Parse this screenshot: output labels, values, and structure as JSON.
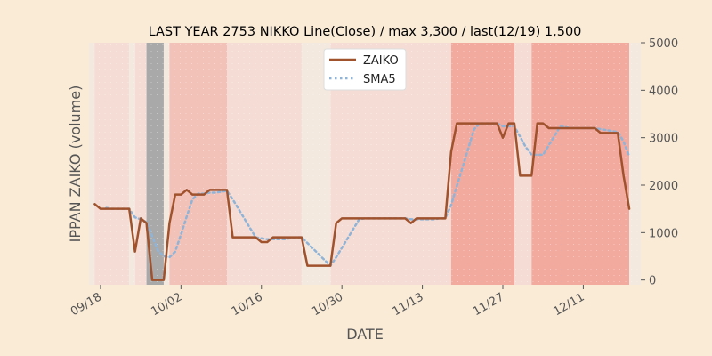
{
  "chart_data": {
    "type": "line",
    "title": "LAST YEAR 2753 NIKKO Line(Close) / max 3,300 / last(12/19) 1,500",
    "xlabel": "DATE",
    "ylabel": "IPPAN ZAIKO (volume)",
    "ylim": [
      -100,
      5000
    ],
    "xlim": [
      "2023-09-16",
      "2023-12-21"
    ],
    "yticks": [
      0,
      1000,
      2000,
      3000,
      4000,
      5000
    ],
    "y_axis_side": "right",
    "xticks": [
      {
        "date": "2023-09-18",
        "label": "09/18"
      },
      {
        "date": "2023-10-02",
        "label": "10/02"
      },
      {
        "date": "2023-10-16",
        "label": "10/16"
      },
      {
        "date": "2023-10-30",
        "label": "10/30"
      },
      {
        "date": "2023-11-13",
        "label": "11/13"
      },
      {
        "date": "2023-11-27",
        "label": "11/27"
      },
      {
        "date": "2023-12-11",
        "label": "12/11"
      }
    ],
    "legend_position": "top-center",
    "colors": {
      "background": "#FAEBD7",
      "plot_background": "#FFFFFF",
      "zaiko": "#A0522D",
      "sma5": "#8FB4D8",
      "band_light": "#F5DDD5",
      "band_medium": "#F2C2B8",
      "band_strong": "#F2A99E",
      "band_gray": "#A9A9A9",
      "band_cream": "#F3E9DF"
    },
    "bands": [
      {
        "start": "2023-09-16",
        "end": "2023-09-17",
        "level": "cream"
      },
      {
        "start": "2023-09-17",
        "end": "2023-09-23",
        "level": "light"
      },
      {
        "start": "2023-09-23",
        "end": "2023-09-24",
        "level": "cream"
      },
      {
        "start": "2023-09-24",
        "end": "2023-09-26",
        "level": "light"
      },
      {
        "start": "2023-09-26",
        "end": "2023-09-29",
        "level": "gray"
      },
      {
        "start": "2023-09-29",
        "end": "2023-09-30",
        "level": "cream"
      },
      {
        "start": "2023-09-30",
        "end": "2023-10-10",
        "level": "medium"
      },
      {
        "start": "2023-10-10",
        "end": "2023-10-23",
        "level": "light"
      },
      {
        "start": "2023-10-23",
        "end": "2023-10-28",
        "level": "cream"
      },
      {
        "start": "2023-10-28",
        "end": "2023-11-18",
        "level": "light"
      },
      {
        "start": "2023-11-18",
        "end": "2023-11-29",
        "level": "strong"
      },
      {
        "start": "2023-11-29",
        "end": "2023-12-02",
        "level": "light"
      },
      {
        "start": "2023-12-02",
        "end": "2023-12-19",
        "level": "strong"
      },
      {
        "start": "2023-12-19",
        "end": "2023-12-21",
        "level": "cream"
      }
    ],
    "series": [
      {
        "name": "ZAIKO",
        "style": "solid",
        "points": [
          [
            "2023-09-17",
            1600
          ],
          [
            "2023-09-18",
            1500
          ],
          [
            "2023-09-19",
            1500
          ],
          [
            "2023-09-20",
            1500
          ],
          [
            "2023-09-21",
            1500
          ],
          [
            "2023-09-22",
            1500
          ],
          [
            "2023-09-23",
            1500
          ],
          [
            "2023-09-24",
            600
          ],
          [
            "2023-09-25",
            1300
          ],
          [
            "2023-09-26",
            1200
          ],
          [
            "2023-09-27",
            0
          ],
          [
            "2023-09-28",
            0
          ],
          [
            "2023-09-29",
            0
          ],
          [
            "2023-09-30",
            1200
          ],
          [
            "2023-10-01",
            1800
          ],
          [
            "2023-10-02",
            1800
          ],
          [
            "2023-10-03",
            1900
          ],
          [
            "2023-10-04",
            1800
          ],
          [
            "2023-10-05",
            1800
          ],
          [
            "2023-10-06",
            1800
          ],
          [
            "2023-10-07",
            1900
          ],
          [
            "2023-10-08",
            1900
          ],
          [
            "2023-10-09",
            1900
          ],
          [
            "2023-10-10",
            1900
          ],
          [
            "2023-10-11",
            900
          ],
          [
            "2023-10-12",
            900
          ],
          [
            "2023-10-13",
            900
          ],
          [
            "2023-10-14",
            900
          ],
          [
            "2023-10-15",
            900
          ],
          [
            "2023-10-16",
            800
          ],
          [
            "2023-10-17",
            800
          ],
          [
            "2023-10-18",
            900
          ],
          [
            "2023-10-19",
            900
          ],
          [
            "2023-10-20",
            900
          ],
          [
            "2023-10-21",
            900
          ],
          [
            "2023-10-22",
            900
          ],
          [
            "2023-10-23",
            900
          ],
          [
            "2023-10-24",
            300
          ],
          [
            "2023-10-25",
            300
          ],
          [
            "2023-10-26",
            300
          ],
          [
            "2023-10-27",
            300
          ],
          [
            "2023-10-28",
            300
          ],
          [
            "2023-10-29",
            1200
          ],
          [
            "2023-10-30",
            1300
          ],
          [
            "2023-10-31",
            1300
          ],
          [
            "2023-11-01",
            1300
          ],
          [
            "2023-11-02",
            1300
          ],
          [
            "2023-11-03",
            1300
          ],
          [
            "2023-11-04",
            1300
          ],
          [
            "2023-11-05",
            1300
          ],
          [
            "2023-11-06",
            1300
          ],
          [
            "2023-11-07",
            1300
          ],
          [
            "2023-11-08",
            1300
          ],
          [
            "2023-11-09",
            1300
          ],
          [
            "2023-11-10",
            1300
          ],
          [
            "2023-11-11",
            1200
          ],
          [
            "2023-11-12",
            1300
          ],
          [
            "2023-11-13",
            1300
          ],
          [
            "2023-11-14",
            1300
          ],
          [
            "2023-11-15",
            1300
          ],
          [
            "2023-11-16",
            1300
          ],
          [
            "2023-11-17",
            1300
          ],
          [
            "2023-11-18",
            2700
          ],
          [
            "2023-11-19",
            3300
          ],
          [
            "2023-11-20",
            3300
          ],
          [
            "2023-11-21",
            3300
          ],
          [
            "2023-11-22",
            3300
          ],
          [
            "2023-11-23",
            3300
          ],
          [
            "2023-11-24",
            3300
          ],
          [
            "2023-11-25",
            3300
          ],
          [
            "2023-11-26",
            3300
          ],
          [
            "2023-11-27",
            3000
          ],
          [
            "2023-11-28",
            3300
          ],
          [
            "2023-11-29",
            3300
          ],
          [
            "2023-11-30",
            2200
          ],
          [
            "2023-12-01",
            2200
          ],
          [
            "2023-12-02",
            2200
          ],
          [
            "2023-12-03",
            3300
          ],
          [
            "2023-12-04",
            3300
          ],
          [
            "2023-12-05",
            3200
          ],
          [
            "2023-12-06",
            3200
          ],
          [
            "2023-12-07",
            3200
          ],
          [
            "2023-12-08",
            3200
          ],
          [
            "2023-12-09",
            3200
          ],
          [
            "2023-12-10",
            3200
          ],
          [
            "2023-12-11",
            3200
          ],
          [
            "2023-12-12",
            3200
          ],
          [
            "2023-12-13",
            3200
          ],
          [
            "2023-12-14",
            3100
          ],
          [
            "2023-12-15",
            3100
          ],
          [
            "2023-12-16",
            3100
          ],
          [
            "2023-12-17",
            3100
          ],
          [
            "2023-12-18",
            2200
          ],
          [
            "2023-12-19",
            1500
          ]
        ]
      },
      {
        "name": "SMA5",
        "style": "dotted",
        "points": [
          [
            "2023-09-19",
            1520
          ],
          [
            "2023-09-20",
            1500
          ],
          [
            "2023-09-21",
            1500
          ],
          [
            "2023-09-22",
            1500
          ],
          [
            "2023-09-23",
            1500
          ],
          [
            "2023-09-24",
            1320
          ],
          [
            "2023-09-25",
            1280
          ],
          [
            "2023-09-26",
            1220
          ],
          [
            "2023-09-27",
            920
          ],
          [
            "2023-09-28",
            620
          ],
          [
            "2023-09-29",
            500
          ],
          [
            "2023-09-30",
            480
          ],
          [
            "2023-10-01",
            600
          ],
          [
            "2023-10-02",
            960
          ],
          [
            "2023-10-03",
            1340
          ],
          [
            "2023-10-04",
            1700
          ],
          [
            "2023-10-05",
            1820
          ],
          [
            "2023-10-06",
            1820
          ],
          [
            "2023-10-07",
            1840
          ],
          [
            "2023-10-08",
            1840
          ],
          [
            "2023-10-09",
            1860
          ],
          [
            "2023-10-10",
            1880
          ],
          [
            "2023-10-11",
            1700
          ],
          [
            "2023-10-12",
            1500
          ],
          [
            "2023-10-13",
            1300
          ],
          [
            "2023-10-14",
            1100
          ],
          [
            "2023-10-15",
            900
          ],
          [
            "2023-10-16",
            880
          ],
          [
            "2023-10-17",
            860
          ],
          [
            "2023-10-18",
            860
          ],
          [
            "2023-10-19",
            860
          ],
          [
            "2023-10-20",
            860
          ],
          [
            "2023-10-21",
            880
          ],
          [
            "2023-10-22",
            900
          ],
          [
            "2023-10-23",
            900
          ],
          [
            "2023-10-24",
            780
          ],
          [
            "2023-10-25",
            660
          ],
          [
            "2023-10-26",
            540
          ],
          [
            "2023-10-27",
            420
          ],
          [
            "2023-10-28",
            300
          ],
          [
            "2023-10-29",
            480
          ],
          [
            "2023-10-30",
            680
          ],
          [
            "2023-10-31",
            880
          ],
          [
            "2023-11-01",
            1080
          ],
          [
            "2023-11-02",
            1280
          ],
          [
            "2023-11-03",
            1300
          ],
          [
            "2023-11-04",
            1300
          ],
          [
            "2023-11-05",
            1300
          ],
          [
            "2023-11-06",
            1300
          ],
          [
            "2023-11-07",
            1300
          ],
          [
            "2023-11-08",
            1300
          ],
          [
            "2023-11-09",
            1300
          ],
          [
            "2023-11-10",
            1300
          ],
          [
            "2023-11-11",
            1280
          ],
          [
            "2023-11-12",
            1280
          ],
          [
            "2023-11-13",
            1280
          ],
          [
            "2023-11-14",
            1280
          ],
          [
            "2023-11-15",
            1280
          ],
          [
            "2023-11-16",
            1300
          ],
          [
            "2023-11-17",
            1300
          ],
          [
            "2023-11-18",
            1580
          ],
          [
            "2023-11-19",
            1980
          ],
          [
            "2023-11-20",
            2380
          ],
          [
            "2023-11-21",
            2780
          ],
          [
            "2023-11-22",
            3180
          ],
          [
            "2023-11-23",
            3300
          ],
          [
            "2023-11-24",
            3300
          ],
          [
            "2023-11-25",
            3300
          ],
          [
            "2023-11-26",
            3300
          ],
          [
            "2023-11-27",
            3240
          ],
          [
            "2023-11-28",
            3240
          ],
          [
            "2023-11-29",
            3240
          ],
          [
            "2023-11-30",
            3020
          ],
          [
            "2023-12-01",
            2800
          ],
          [
            "2023-12-02",
            2640
          ],
          [
            "2023-12-03",
            2640
          ],
          [
            "2023-12-04",
            2640
          ],
          [
            "2023-12-05",
            2840
          ],
          [
            "2023-12-06",
            3040
          ],
          [
            "2023-12-07",
            3240
          ],
          [
            "2023-12-08",
            3220
          ],
          [
            "2023-12-09",
            3200
          ],
          [
            "2023-12-10",
            3200
          ],
          [
            "2023-12-11",
            3200
          ],
          [
            "2023-12-12",
            3200
          ],
          [
            "2023-12-13",
            3200
          ],
          [
            "2023-12-14",
            3180
          ],
          [
            "2023-12-15",
            3160
          ],
          [
            "2023-12-16",
            3140
          ],
          [
            "2023-12-17",
            3120
          ],
          [
            "2023-12-18",
            2920
          ],
          [
            "2023-12-19",
            2600
          ]
        ]
      }
    ]
  }
}
